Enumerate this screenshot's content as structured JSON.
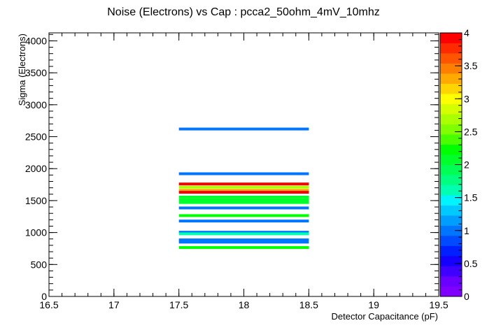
{
  "chart_data": {
    "type": "heatmap",
    "title": "Noise (Electrons) vs Cap : pcca2_50ohm_4mV_10mhz",
    "xlabel": "Detector Capacitance (pF)",
    "ylabel": "Sigma (Electrons)",
    "xlim": [
      16.5,
      19.5
    ],
    "ylim": [
      0,
      4125
    ],
    "x_ticks": [
      "16.5",
      "17",
      "17.5",
      "18",
      "18.5",
      "19",
      "19.5"
    ],
    "x_tick_values": [
      16.5,
      17,
      17.5,
      18,
      18.5,
      19,
      19.5
    ],
    "y_ticks": [
      "0",
      "500",
      "1000",
      "1500",
      "2000",
      "2500",
      "3000",
      "3500",
      "4000"
    ],
    "y_tick_values": [
      0,
      500,
      1000,
      1500,
      2000,
      2500,
      3000,
      3500,
      4000
    ],
    "colorbar": {
      "range": [
        0,
        4
      ],
      "ticks": [
        "0",
        "0.5",
        "1",
        "1.5",
        "2",
        "2.5",
        "3",
        "3.5",
        "4"
      ],
      "tick_values": [
        0,
        0.5,
        1,
        1.5,
        2,
        2.5,
        3,
        3.5,
        4
      ],
      "palette": [
        "#7f00ff",
        "#6a00ff",
        "#4000ff",
        "#1500ff",
        "#0020ff",
        "#004aff",
        "#0075ff",
        "#009fff",
        "#00c9ff",
        "#00f4ff",
        "#00ffb0",
        "#00ff80",
        "#00ff55",
        "#00ff2b",
        "#00ff00",
        "#4aff00",
        "#7fff00",
        "#aaff00",
        "#d5ff00",
        "#ffff00",
        "#ffd500",
        "#ffaa00",
        "#ff8000",
        "#ff5500",
        "#ff2b00",
        "#ff0000"
      ]
    },
    "bin_x": [
      17.5,
      18.5
    ],
    "cells": [
      {
        "y": 2620,
        "z": 1
      },
      {
        "y": 1920,
        "z": 1
      },
      {
        "y": 1760,
        "z": 4
      },
      {
        "y": 1710,
        "z": 2.7
      },
      {
        "y": 1660,
        "z": 3.3
      },
      {
        "y": 1630,
        "z": 4
      },
      {
        "y": 1555,
        "z": 2
      },
      {
        "y": 1510,
        "z": 2
      },
      {
        "y": 1470,
        "z": 2
      },
      {
        "y": 1385,
        "z": 1
      },
      {
        "y": 1265,
        "z": 2.2
      },
      {
        "y": 1180,
        "z": 1
      },
      {
        "y": 1005,
        "z": 1
      },
      {
        "y": 980,
        "z": 1.6
      },
      {
        "y": 885,
        "z": 1
      },
      {
        "y": 850,
        "z": 1
      },
      {
        "y": 765,
        "z": 2.2
      }
    ],
    "grid": false,
    "legend": "colorbar-right"
  }
}
